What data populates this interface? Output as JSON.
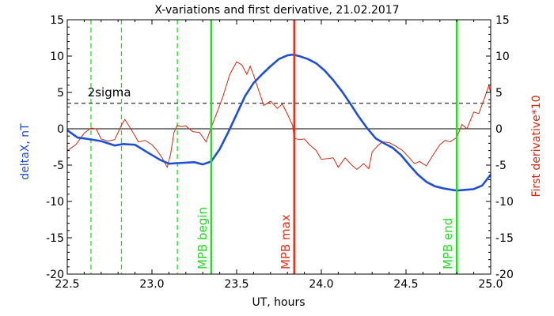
{
  "chart_data": {
    "type": "line",
    "title": "X-variations and first derivative, 21.02.2017",
    "xlabel": "UT, hours",
    "ylabel_left": "deltaX, nT",
    "ylabel_right": "First derivative*10",
    "xlim": [
      22.5,
      25.0
    ],
    "ylim": [
      -20,
      15
    ],
    "x_ticks": [
      {
        "value": 22.5,
        "label": "22.5"
      },
      {
        "value": 23.0,
        "label": "23.0"
      },
      {
        "value": 23.5,
        "label": "23.5"
      },
      {
        "value": 24.0,
        "label": "24.0"
      },
      {
        "value": 24.5,
        "label": "24.5"
      },
      {
        "value": 25.0,
        "label": "25.0"
      }
    ],
    "y_ticks": [
      {
        "value": 15,
        "label": "15"
      },
      {
        "value": 10,
        "label": "10"
      },
      {
        "value": 5,
        "label": "5"
      },
      {
        "value": 0,
        "label": "0"
      },
      {
        "value": -5,
        "label": "-5"
      },
      {
        "value": -10,
        "label": "-10"
      },
      {
        "value": -15,
        "label": "-15"
      },
      {
        "value": -20,
        "label": "-20"
      }
    ],
    "colors": {
      "deltaX": "#1f4fd8",
      "derivative": "#d42a10",
      "mpb": "#22dd22",
      "max": "#e8321a",
      "sigma": "#000000"
    },
    "series": [
      {
        "key": "deltaX",
        "x": [
          22.5,
          22.56,
          22.62,
          22.7,
          22.78,
          22.83,
          22.9,
          22.97,
          23.05,
          23.1,
          23.17,
          23.25,
          23.3,
          23.35,
          23.4,
          23.45,
          23.5,
          23.55,
          23.6,
          23.65,
          23.7,
          23.75,
          23.8,
          23.83,
          23.87,
          23.92,
          23.97,
          24.02,
          24.07,
          24.12,
          24.17,
          24.22,
          24.27,
          24.32,
          24.37,
          24.42,
          24.47,
          24.52,
          24.57,
          24.62,
          24.67,
          24.72,
          24.77,
          24.8,
          24.85,
          24.9,
          24.95,
          25.0
        ],
        "y": [
          -0.2,
          -1.2,
          -1.4,
          -1.7,
          -2.3,
          -2.1,
          -2.2,
          -3.2,
          -4.3,
          -4.8,
          -4.7,
          -4.6,
          -4.9,
          -4.5,
          -2.8,
          -0.5,
          2.0,
          4.5,
          6.3,
          7.5,
          8.6,
          9.6,
          10.1,
          10.2,
          10.0,
          9.6,
          9.0,
          8.0,
          6.7,
          5.2,
          3.5,
          1.7,
          0.1,
          -1.3,
          -2.0,
          -2.6,
          -3.6,
          -5.0,
          -6.3,
          -7.3,
          -7.9,
          -8.2,
          -8.4,
          -8.5,
          -8.4,
          -8.3,
          -7.8,
          -6.3
        ]
      },
      {
        "key": "derivative",
        "x": [
          22.5,
          22.55,
          22.6,
          22.64,
          22.67,
          22.7,
          22.74,
          22.78,
          22.82,
          22.84,
          22.88,
          22.92,
          22.96,
          23.0,
          23.03,
          23.06,
          23.09,
          23.11,
          23.13,
          23.15,
          23.17,
          23.2,
          23.24,
          23.28,
          23.32,
          23.35,
          23.38,
          23.42,
          23.46,
          23.5,
          23.53,
          23.56,
          23.58,
          23.6,
          23.63,
          23.66,
          23.7,
          23.74,
          23.77,
          23.8,
          23.83,
          23.84,
          23.87,
          23.9,
          23.93,
          23.97,
          24.0,
          24.04,
          24.07,
          24.1,
          24.14,
          24.18,
          24.21,
          24.25,
          24.28,
          24.3,
          24.33,
          24.36,
          24.4,
          24.44,
          24.48,
          24.52,
          24.55,
          24.58,
          24.62,
          24.66,
          24.7,
          24.73,
          24.76,
          24.8,
          24.83,
          24.86,
          24.9,
          24.93,
          24.96,
          24.99,
          25.0
        ],
        "y": [
          -3.0,
          -2.2,
          -0.6,
          0.1,
          0.0,
          -1.4,
          -1.7,
          -1.5,
          0.5,
          1.3,
          -0.2,
          -1.8,
          -1.6,
          -2.2,
          -3.0,
          -4.0,
          -5.3,
          -3.5,
          -0.5,
          0.5,
          0.3,
          0.4,
          -0.4,
          -0.5,
          -1.8,
          0.2,
          2.0,
          4.5,
          7.5,
          9.2,
          8.8,
          7.5,
          8.6,
          7.4,
          5.3,
          3.2,
          3.8,
          2.8,
          3.4,
          2.0,
          0.5,
          -1.3,
          -1.5,
          -1.4,
          -2.2,
          -3.0,
          -4.2,
          -4.1,
          -4.0,
          -5.3,
          -4.0,
          -5.0,
          -5.6,
          -4.8,
          -5.5,
          -3.2,
          -2.4,
          -1.8,
          -1.9,
          -2.4,
          -3.0,
          -4.0,
          -4.8,
          -4.5,
          -5.1,
          -3.6,
          -2.2,
          -1.6,
          -1.8,
          -1.2,
          0.6,
          0.0,
          2.3,
          2.1,
          4.0,
          6.0,
          4.8
        ]
      }
    ],
    "reference_lines": {
      "sigma_level": 3.5,
      "zero_level": 0,
      "dashed_green_x": [
        22.64,
        22.82,
        23.15
      ],
      "mpb_begin_x": 23.35,
      "mpb_max_x": 23.84,
      "mpb_end_x": 24.8
    },
    "annotations": {
      "sigma_label": "2sigma",
      "mpb_begin": "MPB begin",
      "mpb_max": "MPB max",
      "mpb_end": "MPB end"
    },
    "grid": false,
    "legend": "none"
  }
}
